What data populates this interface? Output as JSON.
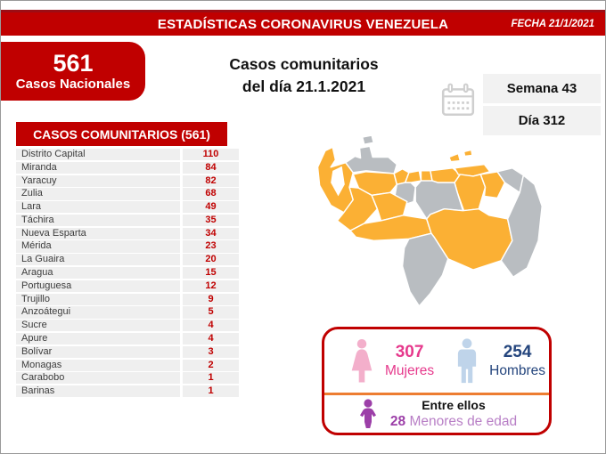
{
  "banner": {
    "title": "ESTADÍSTICAS CORONAVIRUS VENEZUELA",
    "date": "FECHA 21/1/2021"
  },
  "national": {
    "value": "561",
    "label": "Casos Nacionales"
  },
  "subtitle": {
    "line1": "Casos comunitarios",
    "line2": "del día 21.1.2021"
  },
  "period": {
    "week": "Semana 43",
    "day": "Día 312"
  },
  "cases_table": {
    "title": "CASOS COMUNITARIOS (561)",
    "rows": [
      {
        "state": "Distrito Capital",
        "cases": "110"
      },
      {
        "state": "Miranda",
        "cases": "84"
      },
      {
        "state": "Yaracuy",
        "cases": "82"
      },
      {
        "state": "Zulia",
        "cases": "68"
      },
      {
        "state": "Lara",
        "cases": "49"
      },
      {
        "state": "Táchira",
        "cases": "35"
      },
      {
        "state": "Nueva Esparta",
        "cases": "34"
      },
      {
        "state": "Mérida",
        "cases": "23"
      },
      {
        "state": "La Guaira",
        "cases": "20"
      },
      {
        "state": "Aragua",
        "cases": "15"
      },
      {
        "state": "Portuguesa",
        "cases": "12"
      },
      {
        "state": "Trujillo",
        "cases": "9"
      },
      {
        "state": "Anzoátegui",
        "cases": "5"
      },
      {
        "state": "Sucre",
        "cases": "4"
      },
      {
        "state": "Apure",
        "cases": "4"
      },
      {
        "state": "Bolívar",
        "cases": "3"
      },
      {
        "state": "Monagas",
        "cases": "2"
      },
      {
        "state": "Carabobo",
        "cases": "1"
      },
      {
        "state": "Barinas",
        "cases": "1"
      }
    ]
  },
  "gender_panel": {
    "female": {
      "value": "307",
      "label": "Mujeres"
    },
    "male": {
      "value": "254",
      "label": "Hombres"
    },
    "minors": {
      "intro": "Entre ellos",
      "value": "28",
      "label": "Menores de edad"
    }
  },
  "map": {
    "cases_color": "#fbb034",
    "no_cases_color": "#b9bdc1",
    "regions": {
      "zulia": "cases",
      "falcon": "none",
      "paraguana": "none",
      "lara": "cases",
      "yaracuy": "cases",
      "carabobo": "cases",
      "aragua": "cases",
      "miranda": "cases",
      "sucre": "cases",
      "nueva-esparta": "cases",
      "anzoategui": "cases",
      "monagas": "cases",
      "delta-amacuro": "none",
      "cojedes": "none",
      "guarico": "none",
      "andes": "cases",
      "barinas": "cases",
      "apure": "cases",
      "bolivar": "cases",
      "amazonas": "none",
      "esequibo": "none"
    }
  },
  "chart_data": {
    "type": "table",
    "title": "CASOS COMUNITARIOS (561)",
    "categories": [
      "Distrito Capital",
      "Miranda",
      "Yaracuy",
      "Zulia",
      "Lara",
      "Táchira",
      "Nueva Esparta",
      "Mérida",
      "La Guaira",
      "Aragua",
      "Portuguesa",
      "Trujillo",
      "Anzoátegui",
      "Sucre",
      "Apure",
      "Bolívar",
      "Monagas",
      "Carabobo",
      "Barinas"
    ],
    "values": [
      110,
      84,
      82,
      68,
      49,
      35,
      34,
      23,
      20,
      15,
      12,
      9,
      5,
      4,
      4,
      3,
      2,
      1,
      1
    ],
    "total_national_cases": 561,
    "date": "21.1.2021",
    "week": 43,
    "day": 312,
    "gender_breakdown": {
      "mujeres": 307,
      "hombres": 254,
      "menores_de_edad": 28
    },
    "map_note": "choropleth of Venezuela: states with community cases in orange, states without in gray"
  },
  "colors": {
    "brand_red": "#c00000",
    "accent_orange": "#ed7d31",
    "female_pink": "#e6398c",
    "male_navy": "#24457d",
    "minor_purple": "#9c3fa8"
  }
}
